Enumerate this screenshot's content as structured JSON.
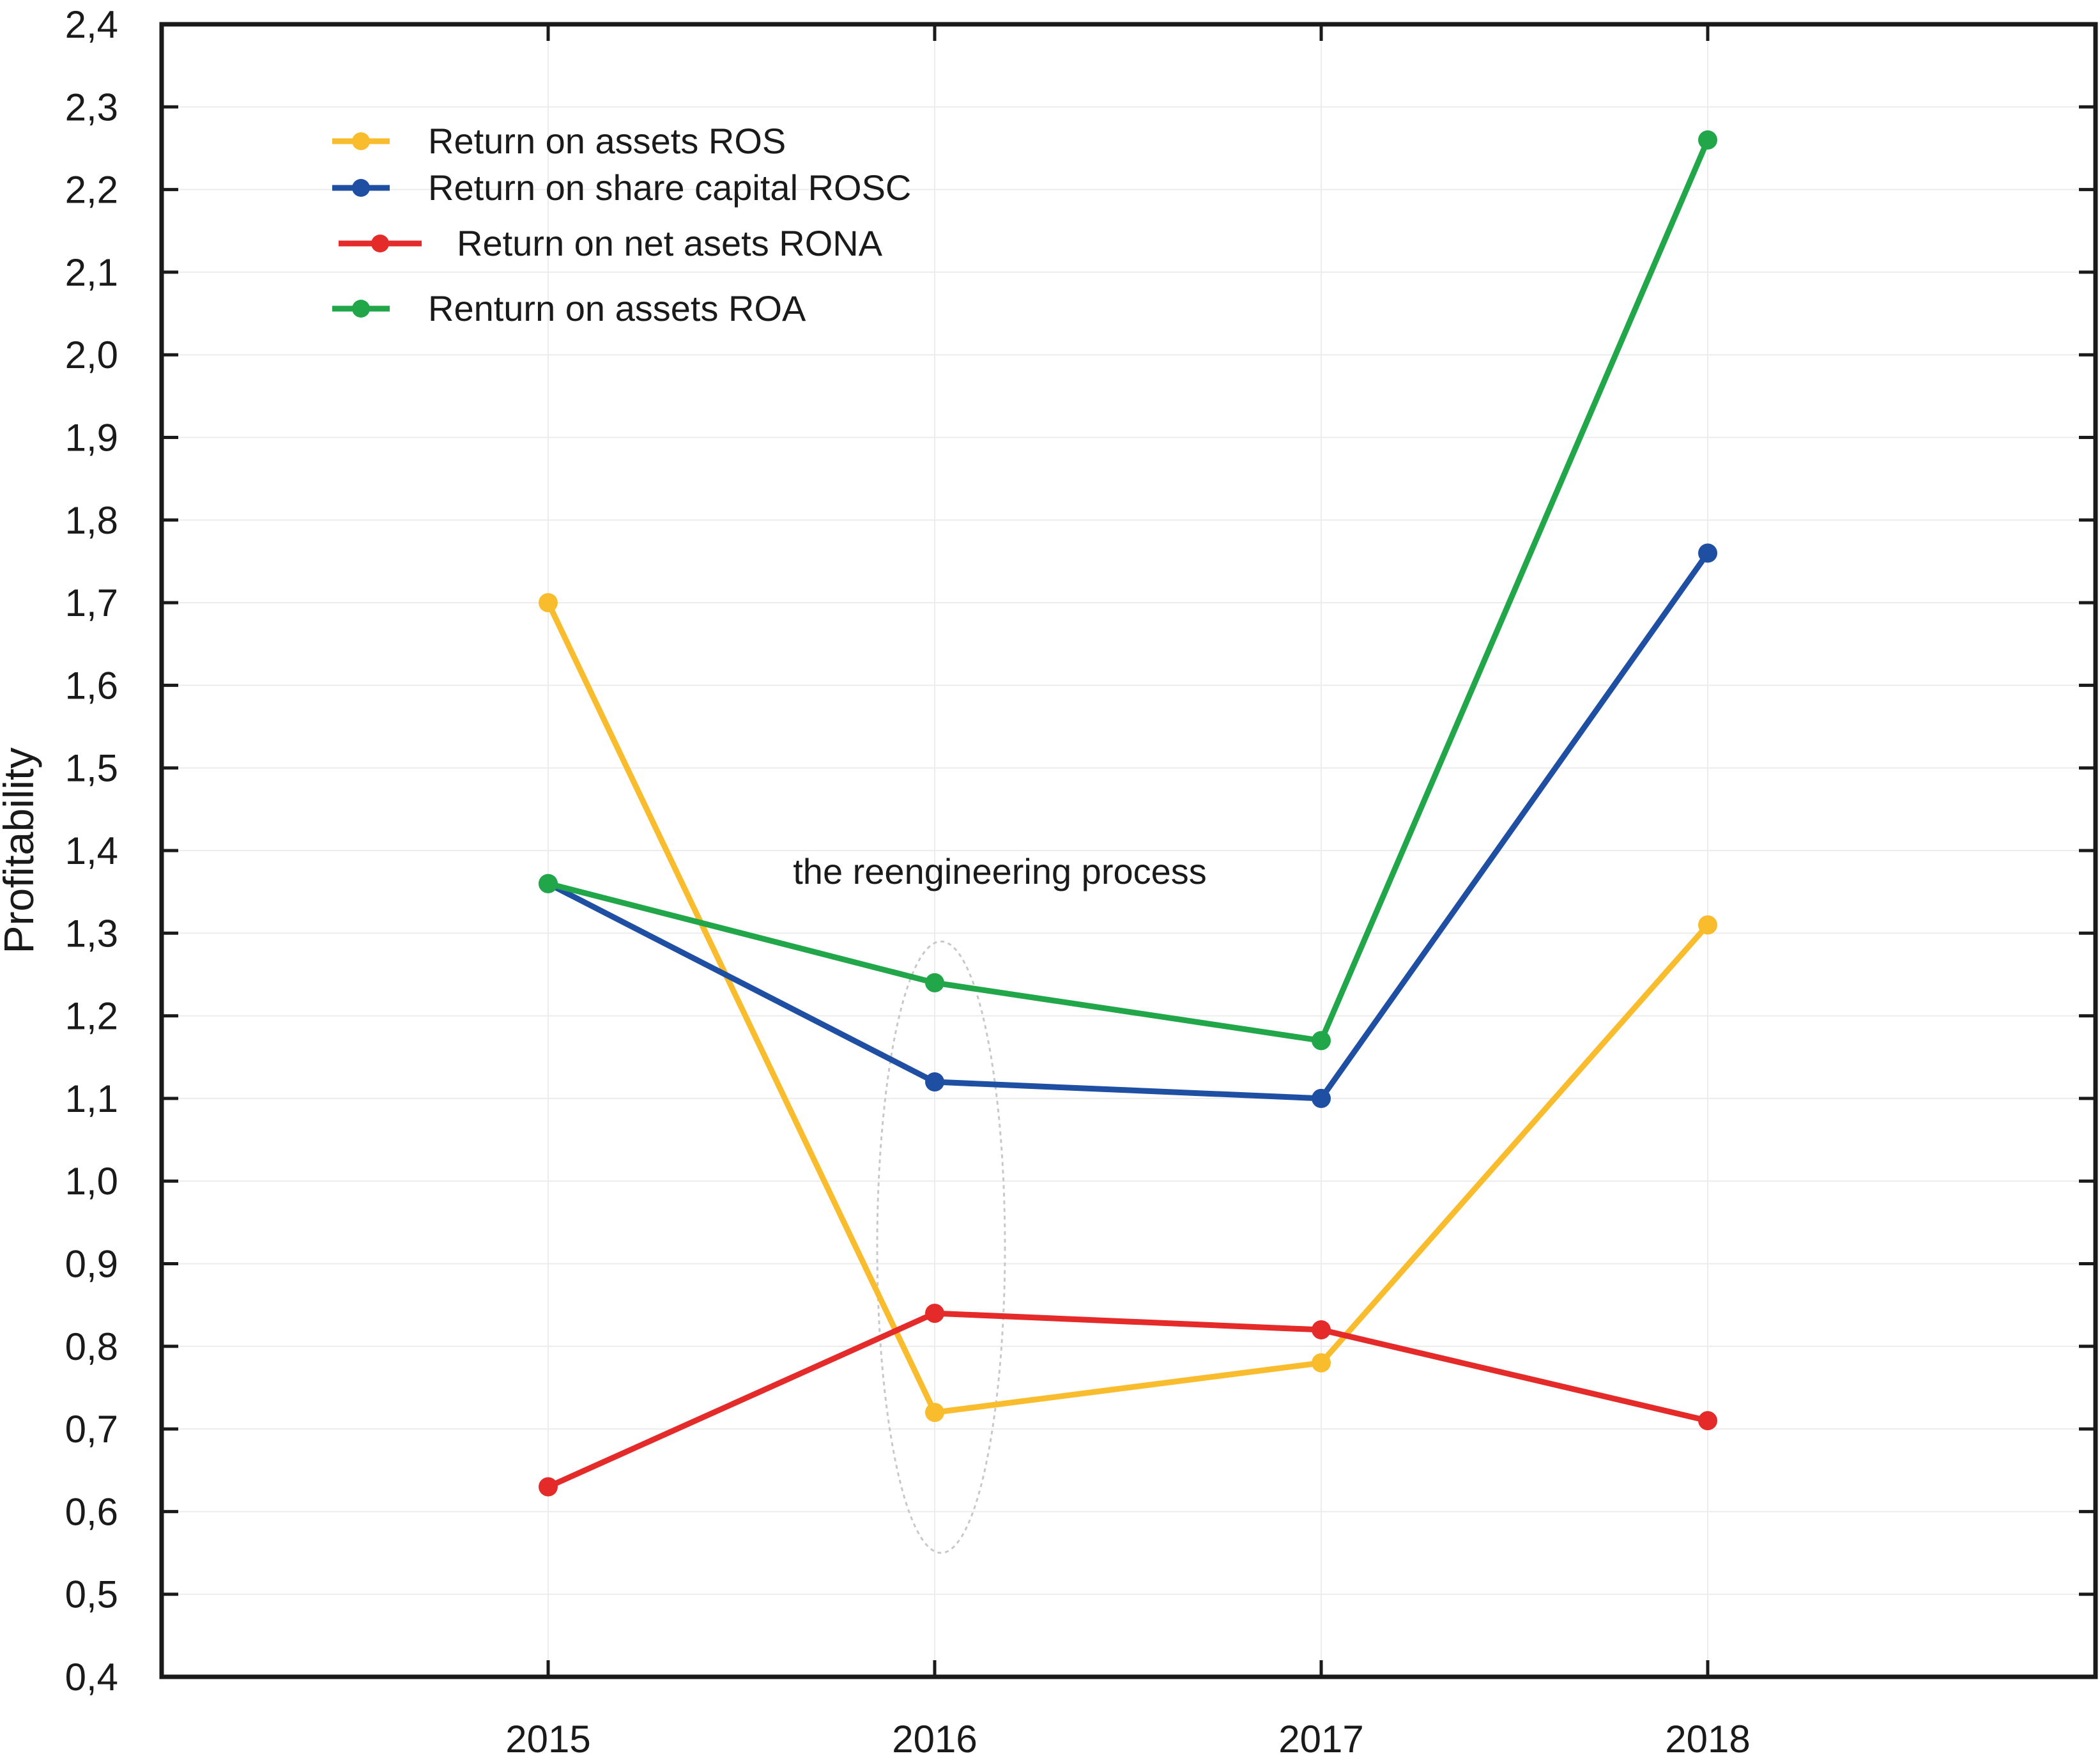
{
  "chart_data": {
    "type": "line",
    "title": "",
    "xlabel": "",
    "ylabel": "Profitability",
    "categories": [
      "2015",
      "2016",
      "2017",
      "2018"
    ],
    "ylim": [
      0.4,
      2.4
    ],
    "yticks": [
      "0,4",
      "0,5",
      "0,6",
      "0,7",
      "0,8",
      "0,9",
      "1,0",
      "1,1",
      "1,2",
      "1,3",
      "1,4",
      "1,5",
      "1,6",
      "1,7",
      "1,8",
      "1,9",
      "2,0",
      "2,1",
      "2,2",
      "2,3",
      "2,4"
    ],
    "grid": true,
    "legend_position": "top-left",
    "series": [
      {
        "name": "Return on assets ROS",
        "color": "#f9bc2c",
        "values": [
          1.7,
          0.72,
          0.78,
          1.31
        ]
      },
      {
        "name": "Return on share capital ROSC",
        "color": "#1f4fa3",
        "values": [
          1.36,
          1.12,
          1.1,
          1.76
        ]
      },
      {
        "name": "Return on net asets RONA",
        "color": "#e52a2a",
        "values": [
          0.63,
          0.84,
          0.82,
          0.71
        ]
      },
      {
        "name": "Renturn on assets ROA",
        "color": "#22a64a",
        "values": [
          1.36,
          1.24,
          1.17,
          2.26
        ]
      }
    ],
    "annotation": {
      "text": "the reengineering process",
      "category": "2016"
    }
  }
}
